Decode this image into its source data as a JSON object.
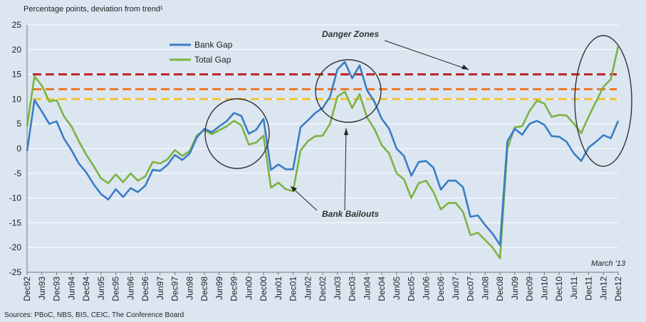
{
  "chart_data": {
    "type": "line",
    "title": "Percentage points, deviation from trend¹",
    "ylim": [
      -25,
      25
    ],
    "yticks": [
      -25,
      -20,
      -15,
      -10,
      -5,
      0,
      5,
      10,
      15,
      20,
      25
    ],
    "x_tick_labels": [
      "Dec92",
      "Jun93",
      "Dec93",
      "Jun94",
      "Dec94",
      "Jun95",
      "Dec95",
      "Jun96",
      "Dec96",
      "Jun97",
      "Dec97",
      "Jun98",
      "Dec98",
      "Jun99",
      "Dec99",
      "Jun00",
      "Dec00",
      "Jun01",
      "Dec01",
      "Jun02",
      "Dec02",
      "Jun03",
      "Dec03",
      "Jun04",
      "Dec04",
      "Jun05",
      "Dec05",
      "Jun06",
      "Dec06",
      "Jun07",
      "Dec07",
      "Jun08",
      "Dec08",
      "Jun09",
      "Dec09",
      "Jun10",
      "Dec10",
      "Jun11",
      "Dec11",
      "Jun12",
      "Dec12"
    ],
    "series": [
      {
        "name": "Bank Gap",
        "color": "#3a7cc3",
        "values": [
          -0.5,
          9.8,
          7.5,
          5,
          5.5,
          2,
          -0.3,
          -3,
          -4.8,
          -7.2,
          -9.2,
          -10.3,
          -8.2,
          -9.8,
          -8,
          -8.8,
          -7.5,
          -4.3,
          -4.5,
          -3.3,
          -1.3,
          -2.3,
          -1,
          2.3,
          4,
          3.3,
          4.5,
          5.5,
          7.2,
          6.6,
          3,
          3.8,
          6,
          -4.3,
          -3.2,
          -4.2,
          -4.2,
          4.3,
          5.7,
          7.2,
          8.2,
          10.5,
          16,
          17.5,
          14.2,
          16.8,
          11.8,
          9.5,
          6,
          4,
          0,
          -1.5,
          -5.5,
          -2.7,
          -2.5,
          -3.9,
          -8.3,
          -6.5,
          -6.5,
          -7.8,
          -13.8,
          -13.5,
          -15.5,
          -17.2,
          -19.5,
          1.5,
          4,
          2.8,
          5,
          5.6,
          4.8,
          2.5,
          2.4,
          1.4,
          -1,
          -2.5,
          0.2,
          1.4,
          2.7,
          2.1,
          5.6
        ]
      },
      {
        "name": "Total Gap",
        "color": "#7cb342",
        "values": [
          4.5,
          14.6,
          12.7,
          9.5,
          9.8,
          6.5,
          4.5,
          1.5,
          -1.2,
          -3.5,
          -6,
          -7,
          -5.2,
          -6.8,
          -5,
          -6.5,
          -5.6,
          -2.7,
          -3,
          -2.2,
          -0.3,
          -1.5,
          -0.5,
          2.7,
          3.7,
          2.9,
          3.7,
          4.5,
          5.6,
          4.7,
          0.8,
          1.2,
          2.6,
          -7.9,
          -6.9,
          -8.2,
          -8.6,
          -0.4,
          1.5,
          2.5,
          2.6,
          5,
          10.5,
          11.5,
          8.2,
          11,
          6.3,
          4,
          0.7,
          -1,
          -5,
          -6.2,
          -10,
          -7,
          -6.5,
          -8.8,
          -12.3,
          -11,
          -11,
          -12.8,
          -17.5,
          -17,
          -18.5,
          -20,
          -22.2,
          0,
          4.3,
          4.5,
          7.6,
          9.7,
          9.1,
          6.4,
          6.8,
          6.7,
          5,
          3.1,
          6.5,
          9.5,
          12.5,
          14,
          20.7
        ]
      }
    ],
    "reference_lines": [
      {
        "y": 15,
        "color": "#c0202a"
      },
      {
        "y": 12,
        "color": "#ef7a2b"
      },
      {
        "y": 10,
        "color": "#f2c335"
      }
    ],
    "legend_position": "top-left",
    "annotations": {
      "danger_zones": "Danger Zones",
      "bank_bailouts": "Bank Bailouts",
      "date_note": "March '13",
      "source": "Sources: PBoC, NBS, BIS, CEIC, The Conference Board"
    }
  }
}
